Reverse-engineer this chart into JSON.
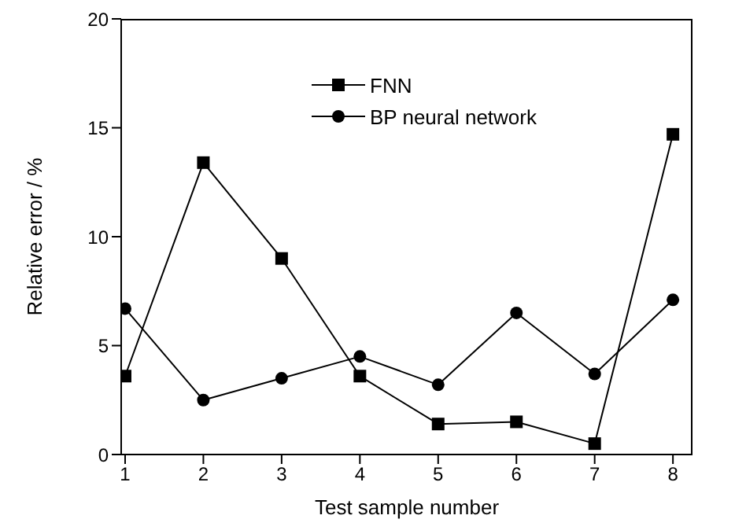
{
  "chart_data": {
    "type": "line",
    "xlabel": "Test sample number",
    "ylabel": "Relative error / %",
    "x": [
      1,
      2,
      3,
      4,
      5,
      6,
      7,
      8
    ],
    "xlim": [
      0.95,
      8.25
    ],
    "xticks": [
      1,
      2,
      3,
      4,
      5,
      6,
      7,
      8
    ],
    "ylim": [
      0,
      20
    ],
    "yticks": [
      0,
      5,
      10,
      15,
      20
    ],
    "grid": false,
    "legend": "top",
    "line_style": "solid",
    "series": [
      {
        "name": "FNN",
        "color": "#000000",
        "marker": "square",
        "values": [
          3.6,
          13.4,
          9.0,
          3.6,
          1.4,
          1.5,
          0.5,
          14.7
        ]
      },
      {
        "name": "BP neural network",
        "color": "#000000",
        "marker": "circle",
        "values": [
          6.7,
          2.5,
          3.5,
          4.5,
          3.2,
          6.5,
          3.7,
          7.1
        ]
      }
    ]
  }
}
